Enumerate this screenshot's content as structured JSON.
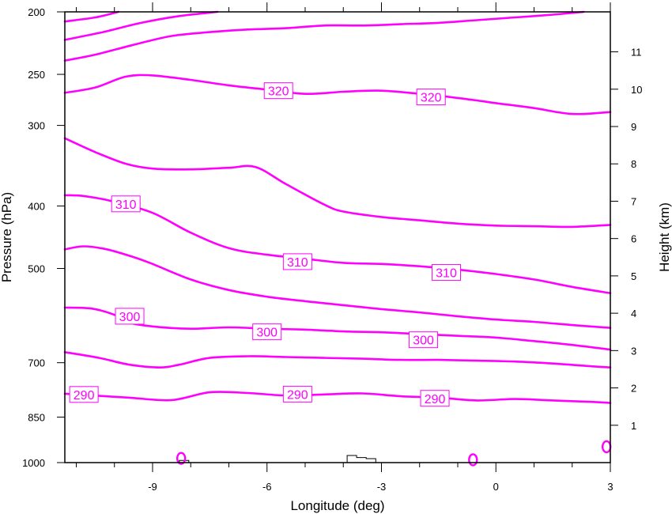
{
  "chart_data": {
    "type": "line",
    "plot": "isentropic cross-section",
    "title": "",
    "xlabel": "Longitude (deg)",
    "ylabel": "Pressure (hPa)",
    "y2label": "Height (km)",
    "xlim": [
      -11.3,
      3
    ],
    "ylim": [
      1000,
      200
    ],
    "yscale": "log",
    "grid": false,
    "x_ticks": [
      -9,
      -6,
      -3,
      0,
      3
    ],
    "x_tick_labels": [
      "-9",
      "-6",
      "-3",
      "0",
      "3"
    ],
    "y_ticks": [
      200,
      250,
      300,
      400,
      500,
      700,
      850,
      1000
    ],
    "y_tick_labels": [
      "200",
      "250",
      "300",
      "400",
      "500",
      "700",
      "850",
      "1000"
    ],
    "y2_ticks": [
      1,
      2,
      3,
      4,
      5,
      6,
      7,
      8,
      9,
      10,
      11
    ],
    "y2_tick_labels": [
      "1",
      "2",
      "3",
      "4",
      "5",
      "6",
      "7",
      "8",
      "9",
      "10",
      "11"
    ],
    "line_color": "#ff00ff",
    "terrain_color": "#000000",
    "series": [
      {
        "x": [
          -11.3,
          -10.4,
          -9.6,
          -8.5,
          -7.5,
          -6.5,
          -5.5,
          -4.5,
          -3.5,
          -2.5,
          -1.5,
          -0.5,
          0.5,
          1.5,
          2.5,
          3.0
        ],
        "y": [
          782,
          788,
          793,
          800,
          778,
          780,
          787,
          784,
          781,
          789,
          793,
          801,
          797,
          801,
          805,
          808
        ]
      },
      {
        "x": [
          -11.3,
          -10.4,
          -9.6,
          -8.8,
          -8.3,
          -7.5,
          -6.5,
          -5.5,
          -4.5,
          -3.5,
          -2.5,
          -1.5,
          -0.5,
          0.5,
          1.5,
          2.5,
          3.0
        ],
        "y": [
          674,
          688,
          705,
          712,
          705,
          688,
          684,
          686,
          688,
          690,
          693,
          693,
          695,
          697,
          702,
          709,
          712
        ]
      },
      {
        "x": [
          -11.3,
          -10.6,
          -10.0,
          -9.7,
          -9.0,
          -8.0,
          -7.0,
          -6.0,
          -5.0,
          -4.0,
          -3.0,
          -2.0,
          -1.0,
          0.0,
          1.0,
          2.0,
          3.0
        ],
        "y": [
          575,
          577,
          590,
          605,
          615,
          620,
          617,
          620,
          622,
          626,
          628,
          632,
          636,
          640,
          648,
          657,
          668
        ]
      },
      {
        "x": [
          -11.3,
          -10.8,
          -10.2,
          -9.5,
          -9.0,
          -8.0,
          -7.0,
          -6.0,
          -5.0,
          -4.0,
          -3.0,
          -2.0,
          -1.0,
          0.0,
          1.0,
          2.0,
          3.0
        ],
        "y": [
          467,
          462,
          467,
          480,
          492,
          520,
          540,
          553,
          562,
          570,
          578,
          585,
          593,
          600,
          605,
          612,
          618
        ]
      },
      {
        "x": [
          -11.3,
          -10.8,
          -10.0,
          -9.0,
          -8.0,
          -7.0,
          -6.0,
          -5.0,
          -4.0,
          -3.0,
          -2.0,
          -1.0,
          0.0,
          1.0,
          2.0,
          3.0
        ],
        "y": [
          385,
          386,
          394,
          410,
          440,
          465,
          476,
          483,
          490,
          492,
          496,
          502,
          510,
          520,
          534,
          546
        ]
      },
      {
        "x": [
          -11.3,
          -10.5,
          -9.7,
          -9.0,
          -8.0,
          -7.0,
          -6.3,
          -5.5,
          -4.5,
          -4.0,
          -3.0,
          -2.0,
          -1.0,
          0.0,
          1.0,
          2.0,
          3.0
        ],
        "y": [
          314,
          330,
          344,
          350,
          351,
          349,
          348,
          370,
          398,
          408,
          416,
          421,
          426,
          429,
          430,
          431,
          428
        ]
      },
      {
        "x": [
          -11.3,
          -10.5,
          -9.7,
          -9.0,
          -8.0,
          -7.0,
          -6.0,
          -5.0,
          -4.0,
          -3.0,
          -2.0,
          -1.0,
          0.0,
          1.0,
          2.0,
          3.0
        ],
        "y": [
          267,
          262,
          252,
          251,
          255,
          260,
          264,
          268,
          266,
          265,
          268,
          272,
          277,
          282,
          288,
          286
        ]
      },
      {
        "x": [
          -11.3,
          -10.5,
          -9.5,
          -8.5,
          -7.5,
          -6.5,
          -5.5,
          -4.5,
          -3.5,
          -2.5,
          -1.5,
          -0.5,
          0.5,
          1.5,
          2.3
        ],
        "y": [
          238,
          233,
          225,
          218,
          215,
          213,
          212,
          210,
          210,
          209,
          208,
          206,
          204,
          202,
          200
        ]
      },
      {
        "x": [
          -11.3,
          -10.3,
          -9.3,
          -8.3,
          -7.3
        ],
        "y": [
          221,
          215,
          208,
          203,
          200
        ]
      },
      {
        "x": [
          -11.3,
          -10.5,
          -9.9
        ],
        "y": [
          207,
          204,
          200
        ]
      }
    ],
    "labels": [
      {
        "text": "290",
        "x": -10.8,
        "y": 784
      },
      {
        "text": "290",
        "x": -5.2,
        "y": 783
      },
      {
        "text": "290",
        "x": -1.6,
        "y": 795
      },
      {
        "text": "300",
        "x": -9.6,
        "y": 593
      },
      {
        "text": "300",
        "x": -6.0,
        "y": 627
      },
      {
        "text": "300",
        "x": -1.9,
        "y": 645
      },
      {
        "text": "310",
        "x": -9.7,
        "y": 397
      },
      {
        "text": "310",
        "x": -5.2,
        "y": 488
      },
      {
        "text": "310",
        "x": -1.3,
        "y": 507
      },
      {
        "text": "320",
        "x": -5.7,
        "y": 265
      },
      {
        "text": "320",
        "x": -1.7,
        "y": 271
      }
    ],
    "contour_blobs": [
      {
        "x": -8.25,
        "y": 985
      },
      {
        "x": -0.6,
        "y": 990
      },
      {
        "x": 2.9,
        "y": 945
      }
    ],
    "terrain_segments": [
      [
        [
          -8.3,
          1000
        ],
        [
          -8.3,
          992
        ],
        [
          -8.05,
          992
        ],
        [
          -8.05,
          1000
        ]
      ],
      [
        [
          -3.9,
          1000
        ],
        [
          -3.9,
          975
        ],
        [
          -3.65,
          975
        ],
        [
          -3.65,
          982
        ],
        [
          -3.4,
          982
        ],
        [
          -3.4,
          986
        ],
        [
          -3.15,
          986
        ],
        [
          -3.15,
          1000
        ]
      ]
    ]
  }
}
